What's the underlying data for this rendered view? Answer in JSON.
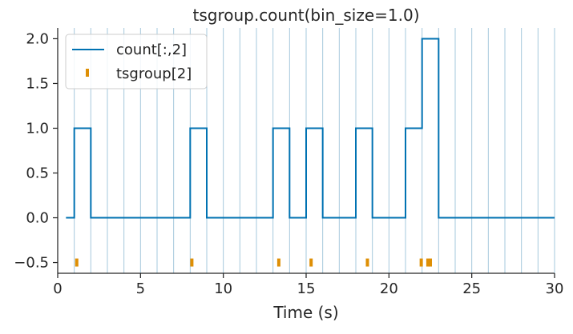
{
  "chart_data": {
    "type": "line",
    "title": "tsgroup.count(bin_size=1.0)",
    "xlabel": "Time (s)",
    "ylabel": "",
    "xlim": [
      0,
      30
    ],
    "ylim": [
      -0.62,
      2.12
    ],
    "x_ticks": [
      0,
      5,
      10,
      15,
      20,
      25,
      30
    ],
    "x_tick_labels": [
      "0",
      "5",
      "10",
      "15",
      "20",
      "25",
      "30"
    ],
    "y_ticks": [
      -0.5,
      0.0,
      0.5,
      1.0,
      1.5,
      2.0
    ],
    "y_tick_labels": [
      "−0.5",
      "0.0",
      "0.5",
      "1.0",
      "1.5",
      "2.0"
    ],
    "bin_size": 1.0,
    "bin_edges": [
      1,
      2,
      3,
      4,
      5,
      6,
      7,
      8,
      9,
      10,
      11,
      12,
      13,
      14,
      15,
      16,
      17,
      18,
      19,
      20,
      21,
      22,
      23,
      24,
      25,
      26,
      27,
      28,
      29,
      30
    ],
    "legend_position": "upper-left",
    "colors": {
      "count": "#0072b2",
      "spikes": "#de8f05",
      "bin_lines": "#a6c8dc",
      "axis": "#262626"
    },
    "series": [
      {
        "name": "count[:,2]",
        "kind": "step",
        "x": [
          0.5,
          1.0,
          1.0,
          2.0,
          2.0,
          8.0,
          8.0,
          9.0,
          9.0,
          13.0,
          13.0,
          14.0,
          14.0,
          15.0,
          15.0,
          16.0,
          16.0,
          18.0,
          18.0,
          19.0,
          19.0,
          21.0,
          21.0,
          22.0,
          22.0,
          23.0,
          23.0,
          30.0
        ],
        "y": [
          0,
          0,
          1,
          1,
          0,
          0,
          1,
          1,
          0,
          0,
          1,
          1,
          0,
          0,
          1,
          1,
          0,
          0,
          1,
          1,
          0,
          0,
          1,
          1,
          2,
          2,
          0,
          0
        ]
      },
      {
        "name": "tsgroup[2]",
        "kind": "event",
        "y_level": -0.5,
        "times": [
          1.15,
          8.1,
          13.35,
          15.3,
          18.7,
          21.95,
          22.35,
          22.5
        ]
      }
    ]
  }
}
